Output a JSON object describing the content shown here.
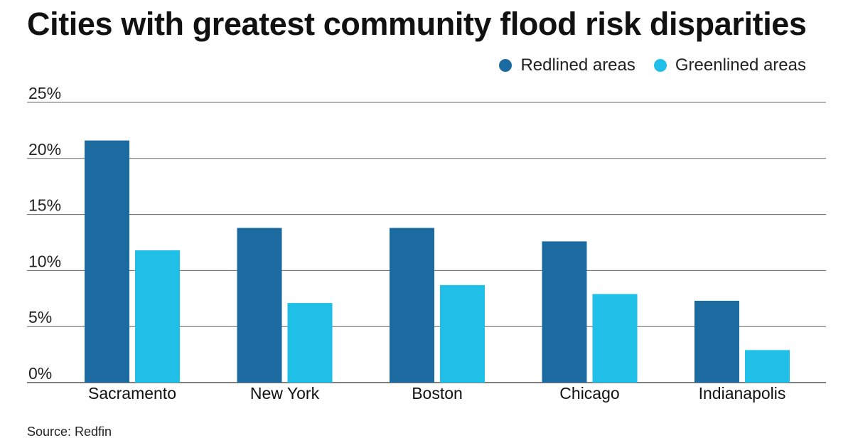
{
  "chart_data": {
    "type": "bar",
    "title": "Cities with greatest community flood risk disparities",
    "categories": [
      "Sacramento",
      "New York",
      "Boston",
      "Chicago",
      "Indianapolis"
    ],
    "series": [
      {
        "name": "Redlined areas",
        "color": "#1b6aa0",
        "values": [
          21.6,
          13.8,
          13.8,
          12.6,
          7.3
        ]
      },
      {
        "name": "Greenlined areas",
        "color": "#1fbfe8",
        "values": [
          11.8,
          7.1,
          8.7,
          7.9,
          2.9
        ]
      }
    ],
    "y_ticks": [
      "0%",
      "5%",
      "10%",
      "15%",
      "20%",
      "25%"
    ],
    "ylim": [
      0,
      25
    ],
    "grid": true,
    "legend_position": "top-right",
    "source": "Source: Redfin"
  }
}
